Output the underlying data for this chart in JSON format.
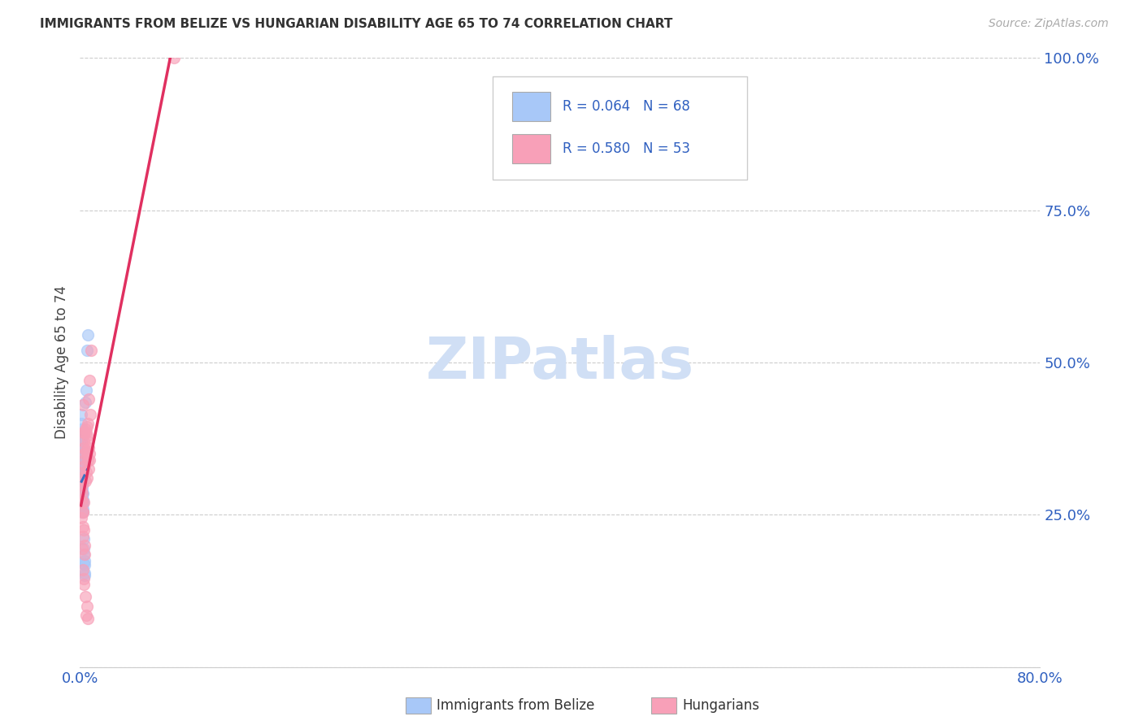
{
  "title": "IMMIGRANTS FROM BELIZE VS HUNGARIAN DISABILITY AGE 65 TO 74 CORRELATION CHART",
  "source": "Source: ZipAtlas.com",
  "ylabel": "Disability Age 65 to 74",
  "legend_label1": "Immigrants from Belize",
  "legend_label2": "Hungarians",
  "legend_r1": "R = 0.064",
  "legend_n1": "N = 68",
  "legend_r2": "R = 0.580",
  "legend_n2": "N = 53",
  "xlim": [
    0.0,
    0.8
  ],
  "ylim": [
    0.0,
    1.0
  ],
  "color_blue": "#a8c8f8",
  "color_pink": "#f8a0b8",
  "color_blue_line": "#3a70c0",
  "color_pink_line": "#e03060",
  "watermark": "ZIPatlas",
  "watermark_color": "#d0dff5",
  "belize_x": [
    0.0008,
    0.0008,
    0.0008,
    0.0008,
    0.0008,
    0.0008,
    0.0008,
    0.0008,
    0.0008,
    0.001,
    0.001,
    0.001,
    0.001,
    0.001,
    0.001,
    0.001,
    0.001,
    0.001,
    0.001,
    0.001,
    0.001,
    0.001,
    0.001,
    0.001,
    0.001,
    0.001,
    0.001,
    0.001,
    0.0012,
    0.0012,
    0.0012,
    0.0012,
    0.0012,
    0.0012,
    0.0012,
    0.0014,
    0.0014,
    0.0014,
    0.0014,
    0.0014,
    0.0016,
    0.0016,
    0.0016,
    0.0016,
    0.0018,
    0.0018,
    0.0018,
    0.002,
    0.002,
    0.002,
    0.002,
    0.0022,
    0.0022,
    0.0022,
    0.0025,
    0.0025,
    0.0028,
    0.0028,
    0.003,
    0.003,
    0.0035,
    0.0035,
    0.004,
    0.004,
    0.0045,
    0.005,
    0.006,
    0.0065
  ],
  "belize_y": [
    0.285,
    0.295,
    0.31,
    0.32,
    0.33,
    0.345,
    0.36,
    0.375,
    0.39,
    0.275,
    0.285,
    0.29,
    0.295,
    0.3,
    0.305,
    0.31,
    0.315,
    0.32,
    0.325,
    0.33,
    0.335,
    0.34,
    0.35,
    0.36,
    0.37,
    0.38,
    0.4,
    0.415,
    0.28,
    0.295,
    0.305,
    0.315,
    0.325,
    0.34,
    0.355,
    0.275,
    0.29,
    0.3,
    0.315,
    0.33,
    0.265,
    0.28,
    0.295,
    0.31,
    0.27,
    0.285,
    0.3,
    0.255,
    0.27,
    0.285,
    0.3,
    0.255,
    0.27,
    0.285,
    0.26,
    0.275,
    0.185,
    0.21,
    0.17,
    0.195,
    0.155,
    0.175,
    0.15,
    0.168,
    0.435,
    0.455,
    0.52,
    0.545
  ],
  "hungarian_x": [
    0.0008,
    0.001,
    0.0012,
    0.0014,
    0.0016,
    0.0018,
    0.002,
    0.0022,
    0.0025,
    0.0028,
    0.003,
    0.0033,
    0.0036,
    0.004,
    0.0044,
    0.0048,
    0.0052,
    0.0056,
    0.006,
    0.0064,
    0.0068,
    0.0072,
    0.0076,
    0.008,
    0.0085,
    0.009,
    0.0018,
    0.0022,
    0.0026,
    0.003,
    0.0035,
    0.004,
    0.0045,
    0.005,
    0.0055,
    0.006,
    0.0065,
    0.007,
    0.0075,
    0.008,
    0.002,
    0.0025,
    0.003,
    0.0035,
    0.004,
    0.0022,
    0.0028,
    0.0034,
    0.0042,
    0.005,
    0.0058,
    0.0066,
    0.078
  ],
  "hungarian_y": [
    0.245,
    0.29,
    0.31,
    0.275,
    0.3,
    0.285,
    0.32,
    0.255,
    0.43,
    0.37,
    0.36,
    0.385,
    0.34,
    0.385,
    0.39,
    0.355,
    0.385,
    0.395,
    0.31,
    0.37,
    0.4,
    0.36,
    0.34,
    0.47,
    0.415,
    0.52,
    0.27,
    0.255,
    0.23,
    0.27,
    0.33,
    0.35,
    0.305,
    0.32,
    0.35,
    0.38,
    0.34,
    0.325,
    0.44,
    0.35,
    0.195,
    0.215,
    0.225,
    0.2,
    0.185,
    0.16,
    0.135,
    0.145,
    0.115,
    0.085,
    0.1,
    0.08,
    1.0
  ]
}
